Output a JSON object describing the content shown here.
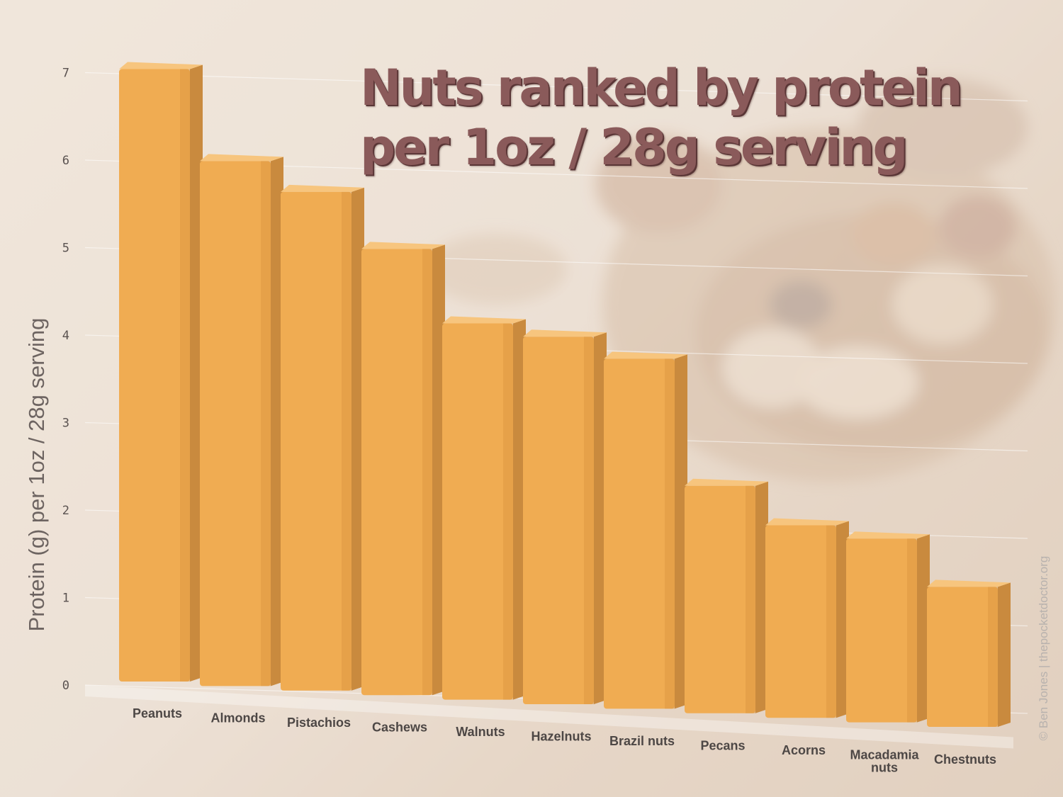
{
  "title_lines": [
    "Nuts ranked by protein",
    "per 1oz / 28g serving"
  ],
  "credit": "© Ben Jones | thepocketdoctor.org",
  "colors": {
    "bar_front": "#f0ac52",
    "bar_side": "#c98a3e",
    "bar_top": "#f7c57e",
    "title": "#8a5a5a"
  },
  "chart_data": {
    "type": "bar",
    "ylabel": "Protein (g) per 1oz / 28g serving",
    "xlabel": "",
    "ylim": [
      0,
      7
    ],
    "yticks": [
      0,
      1,
      2,
      3,
      4,
      5,
      6,
      7
    ],
    "grid": true,
    "categories": [
      [
        "Peanuts"
      ],
      [
        "Almonds"
      ],
      [
        "Pistachios"
      ],
      [
        "Cashews"
      ],
      [
        "Walnuts"
      ],
      [
        "Hazelnuts"
      ],
      [
        "Brazil nuts"
      ],
      [
        "Pecans"
      ],
      [
        "Acorns"
      ],
      [
        "Macadamia",
        "nuts"
      ],
      [
        "Chestnuts"
      ]
    ],
    "values": [
      7.0,
      6.0,
      5.7,
      5.1,
      4.3,
      4.2,
      4.0,
      2.6,
      2.2,
      2.1,
      1.6
    ]
  }
}
